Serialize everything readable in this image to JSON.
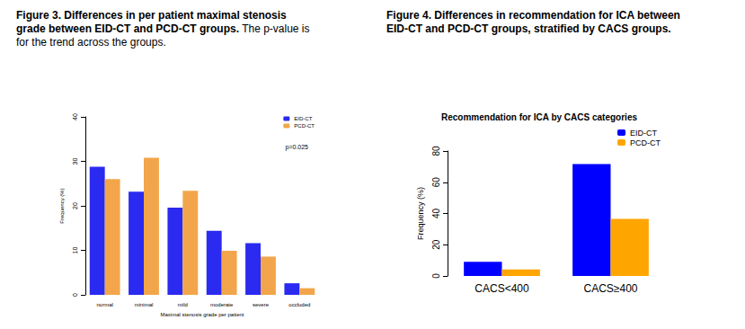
{
  "chart_data": [
    {
      "type": "bar",
      "caption": "Figure 3. Differences in per patient maximal stenosis grade between EID-CT and PCD-CT groups.",
      "caption_note": "The p-value is for the trend across the groups.",
      "x_label": "Maximal stenosis grade per patient",
      "y_label": "Frequency (%)",
      "annotations": [
        "p=0.025"
      ],
      "categories": [
        "normal",
        "minimal",
        "mild",
        "moderate",
        "severe",
        "occluded"
      ],
      "series": [
        {
          "name": "EID-CT",
          "color": "#2a2af0",
          "values": [
            28.8,
            23.2,
            19.6,
            14.4,
            11.6,
            2.6
          ]
        },
        {
          "name": "PCD-CT",
          "color": "#f2a54a",
          "values": [
            26.0,
            30.8,
            23.4,
            9.9,
            8.6,
            1.5
          ]
        }
      ],
      "ylim": [
        0,
        40
      ],
      "yticks": [
        0,
        10,
        20,
        30,
        40
      ],
      "grid": false,
      "legend": "upper right"
    },
    {
      "type": "bar",
      "caption": "Figure 4. Differences in recommendation for ICA between EID-CT and PCD-CT groups, stratified by CACS groups.",
      "title": "Recommendation for ICA by CACS categories",
      "y_label": "Frequency (%)",
      "categories": [
        "CACS<400",
        "CACS≥400"
      ],
      "series": [
        {
          "name": "EID-CT",
          "color": "#0000ff",
          "values": [
            9.0,
            71.7
          ]
        },
        {
          "name": "PCD-CT",
          "color": "#ffa500",
          "values": [
            4.2,
            36.6
          ]
        }
      ],
      "ylim": [
        0,
        80
      ],
      "yticks": [
        0,
        20,
        40,
        60,
        80
      ],
      "grid": false,
      "legend": "upper right"
    }
  ]
}
